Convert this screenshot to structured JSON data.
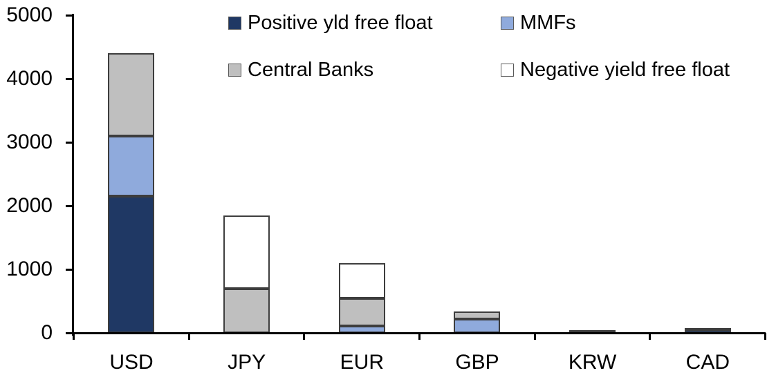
{
  "chart_data": {
    "type": "bar",
    "stacked": true,
    "title": "",
    "xlabel": "",
    "ylabel": "",
    "grid": false,
    "legend_position": "top",
    "ylim": [
      0,
      5000
    ],
    "yticks": [
      0,
      1000,
      2000,
      3000,
      4000,
      5000
    ],
    "ytick_labels": [
      "0",
      "1000",
      "2000",
      "3000",
      "4000",
      "5000"
    ],
    "categories": [
      "USD",
      "JPY",
      "EUR",
      "GBP",
      "KRW",
      "CAD"
    ],
    "series": [
      {
        "name": "Positive yld free float",
        "color": "#1F3864",
        "values": [
          2150,
          0,
          0,
          0,
          45,
          55
        ]
      },
      {
        "name": "MMFs",
        "color": "#8FAADC",
        "values": [
          950,
          0,
          110,
          215,
          0,
          0
        ]
      },
      {
        "name": "Central Banks",
        "color": "#BFBFBF",
        "values": [
          1300,
          700,
          430,
          120,
          0,
          25
        ]
      },
      {
        "name": "Negative yield free float",
        "color": "#FFFFFF",
        "values": [
          0,
          1150,
          560,
          0,
          0,
          0
        ]
      }
    ],
    "totals": [
      4400,
      1850,
      1100,
      335,
      45,
      80
    ]
  },
  "colors": {
    "axis": "#000000",
    "text": "#000000",
    "bar_border": "#3d3d3d",
    "background": "#ffffff"
  },
  "legend": {
    "items": [
      {
        "label": "Positive yld free float",
        "swatch": "#1F3864"
      },
      {
        "label": "MMFs",
        "swatch": "#8FAADC"
      },
      {
        "label": "Central Banks",
        "swatch": "#BFBFBF"
      },
      {
        "label": "Negative yield free float",
        "swatch": "#FFFFFF"
      }
    ]
  }
}
